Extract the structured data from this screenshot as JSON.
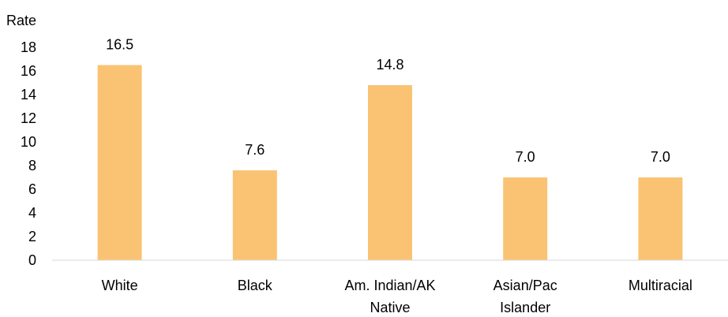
{
  "chart_data": {
    "type": "bar",
    "title": "",
    "xlabel": "",
    "ylabel": "Rate",
    "ylim": [
      0,
      18
    ],
    "yticks": [
      0,
      2,
      4,
      6,
      8,
      10,
      12,
      14,
      16,
      18
    ],
    "categories": [
      [
        "White"
      ],
      [
        "Black"
      ],
      [
        "Am. Indian/AK",
        "Native"
      ],
      [
        "Asian/Pac",
        "Islander"
      ],
      [
        "Multiracial"
      ]
    ],
    "values": [
      16.5,
      7.6,
      14.8,
      7.0,
      7.0
    ],
    "data_labels": [
      "16.5",
      "7.6",
      "14.8",
      "7.0",
      "7.0"
    ],
    "bar_color": "#FAC373",
    "axis_color": "#D9D9D9",
    "grid": false,
    "legend": "none"
  }
}
